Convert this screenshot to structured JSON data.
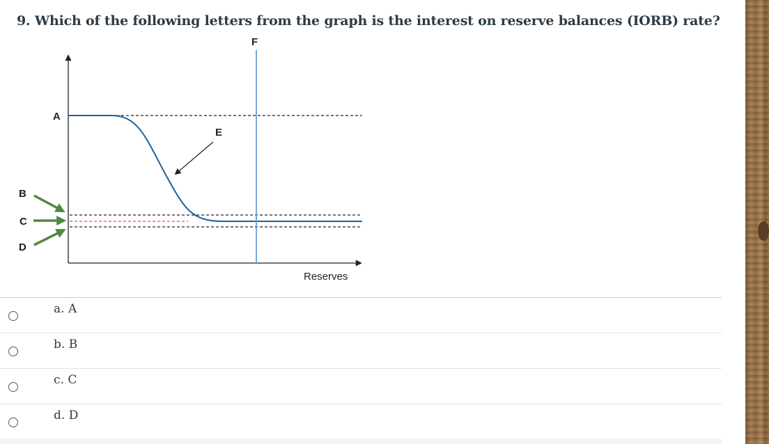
{
  "question": {
    "title": "9. Which of the following letters from the graph is the interest on reserve balances (IORB) rate?"
  },
  "graph": {
    "labels": {
      "a": "A",
      "b": "B",
      "c": "C",
      "d": "D",
      "e": "E",
      "f": "F",
      "x_axis": "Reserves"
    },
    "colors": {
      "curve": "#1f5f9a",
      "vertical_line": "#6a9fd0",
      "arrows_green": "#4e8a3e",
      "dotted_black": "#222222",
      "dotted_red": "#d9534f"
    }
  },
  "answers": [
    {
      "label": "a. A"
    },
    {
      "label": "b. B"
    },
    {
      "label": "c. C"
    },
    {
      "label": "d. D"
    }
  ]
}
